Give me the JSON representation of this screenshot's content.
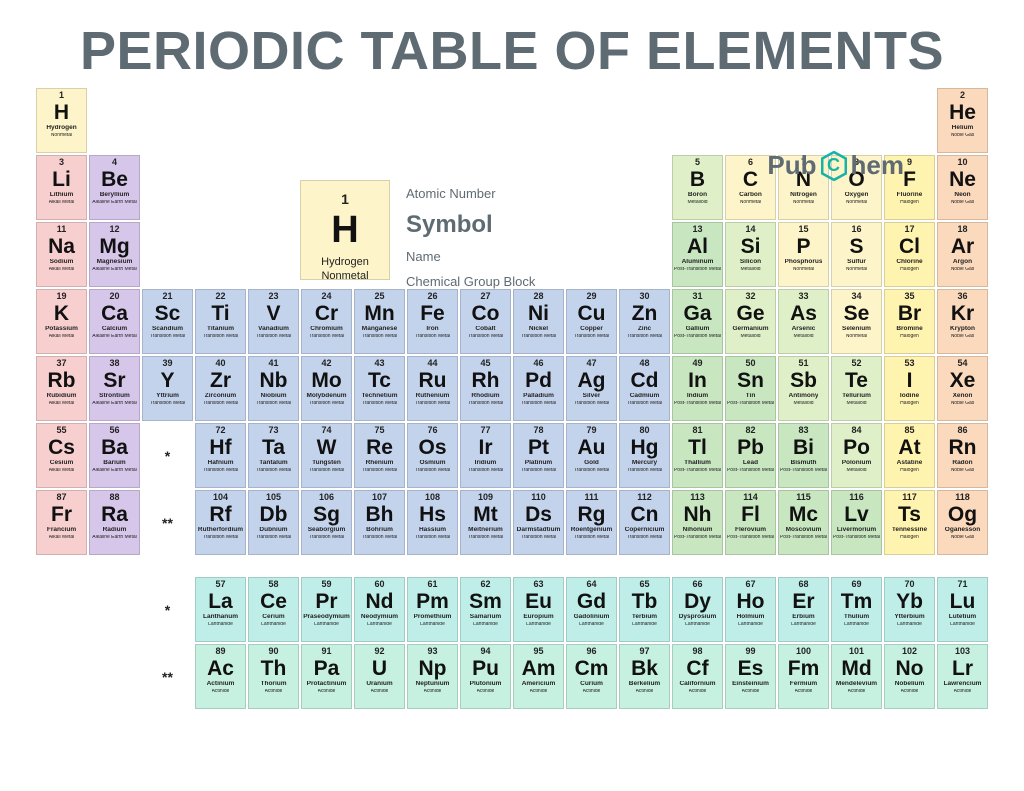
{
  "title": "PERIODIC TABLE OF ELEMENTS",
  "logo": {
    "left": "Pub",
    "mid": "C",
    "right": "hem",
    "text_color": "#5f6b73",
    "accent": "#18b3a7"
  },
  "legend": {
    "num": "1",
    "sym": "H",
    "name": "Hydrogen",
    "group": "Nonmetal",
    "labels": {
      "num": "Atomic Number",
      "sym": "Symbol",
      "name": "Name",
      "group": "Chemical Group Block"
    },
    "bg": "#fdf5c9"
  },
  "group_colors": {
    "Nonmetal": "#fdf5c9",
    "Noble Gas": "#fbd9bc",
    "Alkali Metal": "#f8cfcf",
    "Alkaline Earth Metal": "#d6c7ea",
    "Transition Metal": "#c4d3ec",
    "Post-Transition Metal": "#c8e6c0",
    "Metalloid": "#dff0c8",
    "Halogen": "#fff3b0",
    "Lanthanide": "#bfeee9",
    "Actinide": "#c6f0df"
  },
  "stars": {
    "single": "*",
    "double": "**"
  },
  "elements": [
    {
      "n": 1,
      "s": "H",
      "name": "Hydrogen",
      "g": "Nonmetal",
      "r": 1,
      "c": 1
    },
    {
      "n": 2,
      "s": "He",
      "name": "Helium",
      "g": "Noble Gas",
      "r": 1,
      "c": 18
    },
    {
      "n": 3,
      "s": "Li",
      "name": "Lithium",
      "g": "Alkali Metal",
      "r": 2,
      "c": 1
    },
    {
      "n": 4,
      "s": "Be",
      "name": "Beryllium",
      "g": "Alkaline Earth Metal",
      "r": 2,
      "c": 2
    },
    {
      "n": 5,
      "s": "B",
      "name": "Boron",
      "g": "Metalloid",
      "r": 2,
      "c": 13
    },
    {
      "n": 6,
      "s": "C",
      "name": "Carbon",
      "g": "Nonmetal",
      "r": 2,
      "c": 14
    },
    {
      "n": 7,
      "s": "N",
      "name": "Nitrogen",
      "g": "Nonmetal",
      "r": 2,
      "c": 15
    },
    {
      "n": 8,
      "s": "O",
      "name": "Oxygen",
      "g": "Nonmetal",
      "r": 2,
      "c": 16
    },
    {
      "n": 9,
      "s": "F",
      "name": "Fluorine",
      "g": "Halogen",
      "r": 2,
      "c": 17
    },
    {
      "n": 10,
      "s": "Ne",
      "name": "Neon",
      "g": "Noble Gas",
      "r": 2,
      "c": 18
    },
    {
      "n": 11,
      "s": "Na",
      "name": "Sodium",
      "g": "Alkali Metal",
      "r": 3,
      "c": 1
    },
    {
      "n": 12,
      "s": "Mg",
      "name": "Magnesium",
      "g": "Alkaline Earth Metal",
      "r": 3,
      "c": 2
    },
    {
      "n": 13,
      "s": "Al",
      "name": "Aluminum",
      "g": "Post-Transition Metal",
      "r": 3,
      "c": 13
    },
    {
      "n": 14,
      "s": "Si",
      "name": "Silicon",
      "g": "Metalloid",
      "r": 3,
      "c": 14
    },
    {
      "n": 15,
      "s": "P",
      "name": "Phosphorus",
      "g": "Nonmetal",
      "r": 3,
      "c": 15
    },
    {
      "n": 16,
      "s": "S",
      "name": "Sulfur",
      "g": "Nonmetal",
      "r": 3,
      "c": 16
    },
    {
      "n": 17,
      "s": "Cl",
      "name": "Chlorine",
      "g": "Halogen",
      "r": 3,
      "c": 17
    },
    {
      "n": 18,
      "s": "Ar",
      "name": "Argon",
      "g": "Noble Gas",
      "r": 3,
      "c": 18
    },
    {
      "n": 19,
      "s": "K",
      "name": "Potassium",
      "g": "Alkali Metal",
      "r": 4,
      "c": 1
    },
    {
      "n": 20,
      "s": "Ca",
      "name": "Calcium",
      "g": "Alkaline Earth Metal",
      "r": 4,
      "c": 2
    },
    {
      "n": 21,
      "s": "Sc",
      "name": "Scandium",
      "g": "Transition Metal",
      "r": 4,
      "c": 3
    },
    {
      "n": 22,
      "s": "Ti",
      "name": "Titanium",
      "g": "Transition Metal",
      "r": 4,
      "c": 4
    },
    {
      "n": 23,
      "s": "V",
      "name": "Vanadium",
      "g": "Transition Metal",
      "r": 4,
      "c": 5
    },
    {
      "n": 24,
      "s": "Cr",
      "name": "Chromium",
      "g": "Transition Metal",
      "r": 4,
      "c": 6
    },
    {
      "n": 25,
      "s": "Mn",
      "name": "Manganese",
      "g": "Transition Metal",
      "r": 4,
      "c": 7
    },
    {
      "n": 26,
      "s": "Fe",
      "name": "Iron",
      "g": "Transition Metal",
      "r": 4,
      "c": 8
    },
    {
      "n": 27,
      "s": "Co",
      "name": "Cobalt",
      "g": "Transition Metal",
      "r": 4,
      "c": 9
    },
    {
      "n": 28,
      "s": "Ni",
      "name": "Nickel",
      "g": "Transition Metal",
      "r": 4,
      "c": 10
    },
    {
      "n": 29,
      "s": "Cu",
      "name": "Copper",
      "g": "Transition Metal",
      "r": 4,
      "c": 11
    },
    {
      "n": 30,
      "s": "Zn",
      "name": "Zinc",
      "g": "Transition Metal",
      "r": 4,
      "c": 12
    },
    {
      "n": 31,
      "s": "Ga",
      "name": "Gallium",
      "g": "Post-Transition Metal",
      "r": 4,
      "c": 13
    },
    {
      "n": 32,
      "s": "Ge",
      "name": "Germanium",
      "g": "Metalloid",
      "r": 4,
      "c": 14
    },
    {
      "n": 33,
      "s": "As",
      "name": "Arsenic",
      "g": "Metalloid",
      "r": 4,
      "c": 15
    },
    {
      "n": 34,
      "s": "Se",
      "name": "Selenium",
      "g": "Nonmetal",
      "r": 4,
      "c": 16
    },
    {
      "n": 35,
      "s": "Br",
      "name": "Bromine",
      "g": "Halogen",
      "r": 4,
      "c": 17
    },
    {
      "n": 36,
      "s": "Kr",
      "name": "Krypton",
      "g": "Noble Gas",
      "r": 4,
      "c": 18
    },
    {
      "n": 37,
      "s": "Rb",
      "name": "Rubidium",
      "g": "Alkali Metal",
      "r": 5,
      "c": 1
    },
    {
      "n": 38,
      "s": "Sr",
      "name": "Strontium",
      "g": "Alkaline Earth Metal",
      "r": 5,
      "c": 2
    },
    {
      "n": 39,
      "s": "Y",
      "name": "Yttrium",
      "g": "Transition Metal",
      "r": 5,
      "c": 3
    },
    {
      "n": 40,
      "s": "Zr",
      "name": "Zirconium",
      "g": "Transition Metal",
      "r": 5,
      "c": 4
    },
    {
      "n": 41,
      "s": "Nb",
      "name": "Niobium",
      "g": "Transition Metal",
      "r": 5,
      "c": 5
    },
    {
      "n": 42,
      "s": "Mo",
      "name": "Molybdenum",
      "g": "Transition Metal",
      "r": 5,
      "c": 6
    },
    {
      "n": 43,
      "s": "Tc",
      "name": "Technetium",
      "g": "Transition Metal",
      "r": 5,
      "c": 7
    },
    {
      "n": 44,
      "s": "Ru",
      "name": "Ruthenium",
      "g": "Transition Metal",
      "r": 5,
      "c": 8
    },
    {
      "n": 45,
      "s": "Rh",
      "name": "Rhodium",
      "g": "Transition Metal",
      "r": 5,
      "c": 9
    },
    {
      "n": 46,
      "s": "Pd",
      "name": "Palladium",
      "g": "Transition Metal",
      "r": 5,
      "c": 10
    },
    {
      "n": 47,
      "s": "Ag",
      "name": "Silver",
      "g": "Transition Metal",
      "r": 5,
      "c": 11
    },
    {
      "n": 48,
      "s": "Cd",
      "name": "Cadmium",
      "g": "Transition Metal",
      "r": 5,
      "c": 12
    },
    {
      "n": 49,
      "s": "In",
      "name": "Indium",
      "g": "Post-Transition Metal",
      "r": 5,
      "c": 13
    },
    {
      "n": 50,
      "s": "Sn",
      "name": "Tin",
      "g": "Post-Transition Metal",
      "r": 5,
      "c": 14
    },
    {
      "n": 51,
      "s": "Sb",
      "name": "Antimony",
      "g": "Metalloid",
      "r": 5,
      "c": 15
    },
    {
      "n": 52,
      "s": "Te",
      "name": "Tellurium",
      "g": "Metalloid",
      "r": 5,
      "c": 16
    },
    {
      "n": 53,
      "s": "I",
      "name": "Iodine",
      "g": "Halogen",
      "r": 5,
      "c": 17
    },
    {
      "n": 54,
      "s": "Xe",
      "name": "Xenon",
      "g": "Noble Gas",
      "r": 5,
      "c": 18
    },
    {
      "n": 55,
      "s": "Cs",
      "name": "Cesium",
      "g": "Alkali Metal",
      "r": 6,
      "c": 1
    },
    {
      "n": 56,
      "s": "Ba",
      "name": "Barium",
      "g": "Alkaline Earth Metal",
      "r": 6,
      "c": 2
    },
    {
      "n": 72,
      "s": "Hf",
      "name": "Hafnium",
      "g": "Transition Metal",
      "r": 6,
      "c": 4
    },
    {
      "n": 73,
      "s": "Ta",
      "name": "Tantalum",
      "g": "Transition Metal",
      "r": 6,
      "c": 5
    },
    {
      "n": 74,
      "s": "W",
      "name": "Tungsten",
      "g": "Transition Metal",
      "r": 6,
      "c": 6
    },
    {
      "n": 75,
      "s": "Re",
      "name": "Rhenium",
      "g": "Transition Metal",
      "r": 6,
      "c": 7
    },
    {
      "n": 76,
      "s": "Os",
      "name": "Osmium",
      "g": "Transition Metal",
      "r": 6,
      "c": 8
    },
    {
      "n": 77,
      "s": "Ir",
      "name": "Iridium",
      "g": "Transition Metal",
      "r": 6,
      "c": 9
    },
    {
      "n": 78,
      "s": "Pt",
      "name": "Platinum",
      "g": "Transition Metal",
      "r": 6,
      "c": 10
    },
    {
      "n": 79,
      "s": "Au",
      "name": "Gold",
      "g": "Transition Metal",
      "r": 6,
      "c": 11
    },
    {
      "n": 80,
      "s": "Hg",
      "name": "Mercury",
      "g": "Transition Metal",
      "r": 6,
      "c": 12
    },
    {
      "n": 81,
      "s": "Tl",
      "name": "Thallium",
      "g": "Post-Transition Metal",
      "r": 6,
      "c": 13
    },
    {
      "n": 82,
      "s": "Pb",
      "name": "Lead",
      "g": "Post-Transition Metal",
      "r": 6,
      "c": 14
    },
    {
      "n": 83,
      "s": "Bi",
      "name": "Bismuth",
      "g": "Post-Transition Metal",
      "r": 6,
      "c": 15
    },
    {
      "n": 84,
      "s": "Po",
      "name": "Polonium",
      "g": "Metalloid",
      "r": 6,
      "c": 16
    },
    {
      "n": 85,
      "s": "At",
      "name": "Astatine",
      "g": "Halogen",
      "r": 6,
      "c": 17
    },
    {
      "n": 86,
      "s": "Rn",
      "name": "Radon",
      "g": "Noble Gas",
      "r": 6,
      "c": 18
    },
    {
      "n": 87,
      "s": "Fr",
      "name": "Francium",
      "g": "Alkali Metal",
      "r": 7,
      "c": 1
    },
    {
      "n": 88,
      "s": "Ra",
      "name": "Radium",
      "g": "Alkaline Earth Metal",
      "r": 7,
      "c": 2
    },
    {
      "n": 104,
      "s": "Rf",
      "name": "Rutherfordium",
      "g": "Transition Metal",
      "r": 7,
      "c": 4
    },
    {
      "n": 105,
      "s": "Db",
      "name": "Dubnium",
      "g": "Transition Metal",
      "r": 7,
      "c": 5
    },
    {
      "n": 106,
      "s": "Sg",
      "name": "Seaborgium",
      "g": "Transition Metal",
      "r": 7,
      "c": 6
    },
    {
      "n": 107,
      "s": "Bh",
      "name": "Bohrium",
      "g": "Transition Metal",
      "r": 7,
      "c": 7
    },
    {
      "n": 108,
      "s": "Hs",
      "name": "Hassium",
      "g": "Transition Metal",
      "r": 7,
      "c": 8
    },
    {
      "n": 109,
      "s": "Mt",
      "name": "Meitnerium",
      "g": "Transition Metal",
      "r": 7,
      "c": 9
    },
    {
      "n": 110,
      "s": "Ds",
      "name": "Darmstadtium",
      "g": "Transition Metal",
      "r": 7,
      "c": 10
    },
    {
      "n": 111,
      "s": "Rg",
      "name": "Roentgenium",
      "g": "Transition Metal",
      "r": 7,
      "c": 11
    },
    {
      "n": 112,
      "s": "Cn",
      "name": "Copernicium",
      "g": "Transition Metal",
      "r": 7,
      "c": 12
    },
    {
      "n": 113,
      "s": "Nh",
      "name": "Nihonium",
      "g": "Post-Transition Metal",
      "r": 7,
      "c": 13
    },
    {
      "n": 114,
      "s": "Fl",
      "name": "Flerovium",
      "g": "Post-Transition Metal",
      "r": 7,
      "c": 14
    },
    {
      "n": 115,
      "s": "Mc",
      "name": "Moscovium",
      "g": "Post-Transition Metal",
      "r": 7,
      "c": 15
    },
    {
      "n": 116,
      "s": "Lv",
      "name": "Livermorium",
      "g": "Post-Transition Metal",
      "r": 7,
      "c": 16
    },
    {
      "n": 117,
      "s": "Ts",
      "name": "Tennessine",
      "g": "Halogen",
      "r": 7,
      "c": 17
    },
    {
      "n": 118,
      "s": "Og",
      "name": "Oganesson",
      "g": "Noble Gas",
      "r": 7,
      "c": 18
    },
    {
      "n": 57,
      "s": "La",
      "name": "Lanthanum",
      "g": "Lanthanide",
      "r": 9,
      "c": 4
    },
    {
      "n": 58,
      "s": "Ce",
      "name": "Cerium",
      "g": "Lanthanide",
      "r": 9,
      "c": 5
    },
    {
      "n": 59,
      "s": "Pr",
      "name": "Praseodymium",
      "g": "Lanthanide",
      "r": 9,
      "c": 6
    },
    {
      "n": 60,
      "s": "Nd",
      "name": "Neodymium",
      "g": "Lanthanide",
      "r": 9,
      "c": 7
    },
    {
      "n": 61,
      "s": "Pm",
      "name": "Promethium",
      "g": "Lanthanide",
      "r": 9,
      "c": 8
    },
    {
      "n": 62,
      "s": "Sm",
      "name": "Samarium",
      "g": "Lanthanide",
      "r": 9,
      "c": 9
    },
    {
      "n": 63,
      "s": "Eu",
      "name": "Europium",
      "g": "Lanthanide",
      "r": 9,
      "c": 10
    },
    {
      "n": 64,
      "s": "Gd",
      "name": "Gadolinium",
      "g": "Lanthanide",
      "r": 9,
      "c": 11
    },
    {
      "n": 65,
      "s": "Tb",
      "name": "Terbium",
      "g": "Lanthanide",
      "r": 9,
      "c": 12
    },
    {
      "n": 66,
      "s": "Dy",
      "name": "Dysprosium",
      "g": "Lanthanide",
      "r": 9,
      "c": 13
    },
    {
      "n": 67,
      "s": "Ho",
      "name": "Holmium",
      "g": "Lanthanide",
      "r": 9,
      "c": 14
    },
    {
      "n": 68,
      "s": "Er",
      "name": "Erbium",
      "g": "Lanthanide",
      "r": 9,
      "c": 15
    },
    {
      "n": 69,
      "s": "Tm",
      "name": "Thulium",
      "g": "Lanthanide",
      "r": 9,
      "c": 16
    },
    {
      "n": 70,
      "s": "Yb",
      "name": "Ytterbium",
      "g": "Lanthanide",
      "r": 9,
      "c": 17
    },
    {
      "n": 71,
      "s": "Lu",
      "name": "Lutetium",
      "g": "Lanthanide",
      "r": 9,
      "c": 18
    },
    {
      "n": 89,
      "s": "Ac",
      "name": "Actinium",
      "g": "Actinide",
      "r": 10,
      "c": 4
    },
    {
      "n": 90,
      "s": "Th",
      "name": "Thorium",
      "g": "Actinide",
      "r": 10,
      "c": 5
    },
    {
      "n": 91,
      "s": "Pa",
      "name": "Protactinium",
      "g": "Actinide",
      "r": 10,
      "c": 6
    },
    {
      "n": 92,
      "s": "U",
      "name": "Uranium",
      "g": "Actinide",
      "r": 10,
      "c": 7
    },
    {
      "n": 93,
      "s": "Np",
      "name": "Neptunium",
      "g": "Actinide",
      "r": 10,
      "c": 8
    },
    {
      "n": 94,
      "s": "Pu",
      "name": "Plutonium",
      "g": "Actinide",
      "r": 10,
      "c": 9
    },
    {
      "n": 95,
      "s": "Am",
      "name": "Americium",
      "g": "Actinide",
      "r": 10,
      "c": 10
    },
    {
      "n": 96,
      "s": "Cm",
      "name": "Curium",
      "g": "Actinide",
      "r": 10,
      "c": 11
    },
    {
      "n": 97,
      "s": "Bk",
      "name": "Berkelium",
      "g": "Actinide",
      "r": 10,
      "c": 12
    },
    {
      "n": 98,
      "s": "Cf",
      "name": "Californium",
      "g": "Actinide",
      "r": 10,
      "c": 13
    },
    {
      "n": 99,
      "s": "Es",
      "name": "Einsteinium",
      "g": "Actinide",
      "r": 10,
      "c": 14
    },
    {
      "n": 100,
      "s": "Fm",
      "name": "Fermium",
      "g": "Actinide",
      "r": 10,
      "c": 15
    },
    {
      "n": 101,
      "s": "Md",
      "name": "Mendelevium",
      "g": "Actinide",
      "r": 10,
      "c": 16
    },
    {
      "n": 102,
      "s": "No",
      "name": "Nobelium",
      "g": "Actinide",
      "r": 10,
      "c": 17
    },
    {
      "n": 103,
      "s": "Lr",
      "name": "Lawrencium",
      "g": "Actinide",
      "r": 10,
      "c": 18
    }
  ],
  "star_markers": [
    {
      "r": 6,
      "c": 3,
      "t": "single"
    },
    {
      "r": 7,
      "c": 3,
      "t": "double"
    },
    {
      "r": 9,
      "c": 3,
      "t": "single"
    },
    {
      "r": 10,
      "c": 3,
      "t": "double"
    }
  ]
}
